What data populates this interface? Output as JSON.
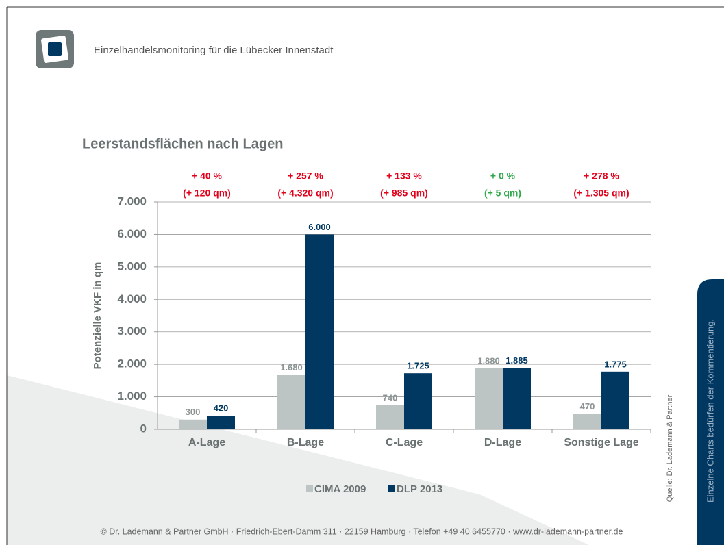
{
  "header": {
    "title": "Einzelhandelsmonitoring für die Lübecker Innenstadt"
  },
  "chart_data": {
    "type": "bar",
    "title": "Leerstandsflächen nach Lagen",
    "y_label": "Potenzielle VKF in qm",
    "categories": [
      "A-Lage",
      "B-Lage",
      "C-Lage",
      "D-Lage",
      "Sonstige Lage"
    ],
    "series": [
      {
        "name": "CIMA 2009",
        "color": "#bcc4c4",
        "values": [
          300,
          1680,
          740,
          1880,
          470
        ],
        "value_labels": [
          "300",
          "1.680",
          "740",
          "1.880",
          "470"
        ]
      },
      {
        "name": "DLP 2013",
        "color": "#003862",
        "values": [
          420,
          6000,
          1725,
          1885,
          1775
        ],
        "value_labels": [
          "420",
          "6.000",
          "1.725",
          "1.885",
          "1.775"
        ]
      }
    ],
    "ylim": [
      0,
      7000
    ],
    "yticks": [
      0,
      {
        "value": 1000,
        "label": "1.000"
      },
      {
        "value": 2000,
        "label": "2.000"
      },
      {
        "value": 3000,
        "label": "3.000"
      },
      {
        "value": 4000,
        "label": "4.000"
      },
      {
        "value": 5000,
        "label": "5.000"
      },
      {
        "value": 6000,
        "label": "6.000"
      },
      {
        "value": 7000,
        "label": "7.000"
      }
    ],
    "grid": true,
    "legend": "bottom",
    "annotations": [
      {
        "change": "+ 40 %",
        "area": "(+ 120 qm)",
        "color": "#e3001b"
      },
      {
        "change": "+ 257 %",
        "area": "(+ 4.320 qm)",
        "color": "#e3001b"
      },
      {
        "change": "+ 133 %",
        "area": "(+ 985 qm)",
        "color": "#e3001b"
      },
      {
        "change": "+ 0 %",
        "area": "(+ 5 qm)",
        "color": "#2ea84a"
      },
      {
        "change": "+ 278 %",
        "area": "(+ 1.305 qm)",
        "color": "#e3001b"
      }
    ]
  },
  "source": "Quelle: Dr. Lademann & Partner",
  "side_note": "Einzelne Charts bedürfen der Kommentierung.",
  "footer": "© Dr. Lademann & Partner GmbH · Friedrich-Ebert-Damm 311 · 22159 Hamburg · Telefon +49 40 6455770 · www.dr-lademann-partner.de"
}
